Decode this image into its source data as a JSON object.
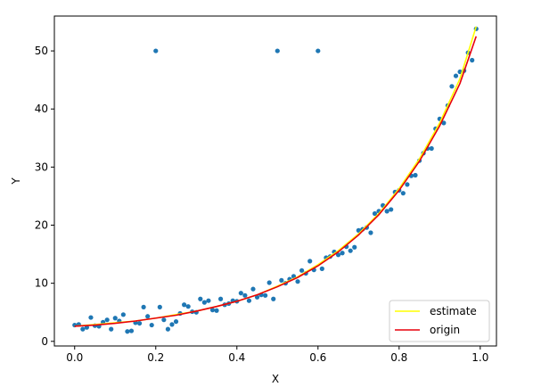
{
  "chart_data": {
    "type": "scatter",
    "title": "",
    "xlabel": "X",
    "ylabel": "Y",
    "xlim": [
      -0.05,
      1.04
    ],
    "ylim": [
      -0.8,
      56.0
    ],
    "xticks": [
      0.0,
      0.2,
      0.4,
      0.6,
      0.8,
      1.0
    ],
    "xtick_labels": [
      "0.0",
      "0.2",
      "0.4",
      "0.6",
      "0.8",
      "1.0"
    ],
    "yticks": [
      0,
      10,
      20,
      30,
      40,
      50
    ],
    "ytick_labels": [
      "0",
      "10",
      "20",
      "30",
      "40",
      "50"
    ],
    "grid": false,
    "legend_position": "lower-right",
    "colors": {
      "points": "#1f77b4",
      "estimate": "#ffff00",
      "origin": "#e8000b"
    },
    "series": [
      {
        "type": "scatter",
        "x": [
          0.0,
          0.01,
          0.02,
          0.03,
          0.04,
          0.05,
          0.06,
          0.07,
          0.08,
          0.09,
          0.1,
          0.11,
          0.12,
          0.13,
          0.14,
          0.15,
          0.16,
          0.17,
          0.18,
          0.19,
          0.2,
          0.21,
          0.22,
          0.23,
          0.24,
          0.25,
          0.26,
          0.27,
          0.28,
          0.29,
          0.3,
          0.31,
          0.32,
          0.33,
          0.34,
          0.35,
          0.36,
          0.37,
          0.38,
          0.39,
          0.4,
          0.41,
          0.42,
          0.43,
          0.44,
          0.45,
          0.46,
          0.47,
          0.48,
          0.49,
          0.5,
          0.51,
          0.52,
          0.53,
          0.54,
          0.55,
          0.56,
          0.57,
          0.58,
          0.59,
          0.6,
          0.61,
          0.62,
          0.63,
          0.64,
          0.65,
          0.66,
          0.67,
          0.68,
          0.69,
          0.7,
          0.71,
          0.72,
          0.73,
          0.74,
          0.75,
          0.76,
          0.77,
          0.78,
          0.79,
          0.8,
          0.81,
          0.82,
          0.83,
          0.84,
          0.85,
          0.86,
          0.87,
          0.88,
          0.89,
          0.9,
          0.91,
          0.92,
          0.93,
          0.94,
          0.95,
          0.96,
          0.97,
          0.98,
          0.99
        ],
        "y": [
          2.8,
          2.9,
          2.1,
          2.4,
          4.1,
          2.7,
          2.6,
          3.3,
          3.7,
          2.1,
          4.0,
          3.5,
          4.6,
          1.7,
          1.8,
          3.2,
          3.1,
          5.9,
          4.3,
          2.8,
          50.0,
          5.9,
          3.7,
          2.1,
          2.9,
          3.4,
          4.8,
          6.3,
          6.0,
          5.1,
          5.0,
          7.3,
          6.7,
          7.0,
          5.4,
          5.3,
          7.3,
          6.3,
          6.5,
          7.0,
          6.9,
          8.3,
          7.9,
          7.0,
          9.0,
          7.6,
          8.0,
          7.9,
          10.1,
          7.3,
          50.0,
          10.5,
          10.0,
          10.7,
          11.2,
          10.3,
          12.2,
          11.7,
          13.8,
          12.3,
          50.0,
          12.5,
          14.4,
          14.6,
          15.4,
          14.9,
          15.2,
          16.3,
          15.6,
          16.2,
          19.1,
          19.3,
          19.6,
          18.7,
          22.0,
          22.4,
          23.4,
          22.4,
          22.7,
          25.7,
          26.0,
          25.5,
          27.0,
          28.5,
          28.6,
          31.1,
          32.4,
          33.2,
          33.2,
          36.6,
          38.3,
          37.6,
          40.6,
          43.9,
          45.7,
          46.4,
          46.6,
          49.7,
          48.4,
          53.8
        ]
      },
      {
        "type": "line",
        "name": "estimate",
        "x": [
          0.0,
          0.05,
          0.1,
          0.15,
          0.2,
          0.25,
          0.3,
          0.35,
          0.4,
          0.45,
          0.5,
          0.55,
          0.6,
          0.65,
          0.7,
          0.75,
          0.8,
          0.85,
          0.9,
          0.95,
          0.99
        ],
        "y": [
          2.6,
          2.9,
          3.2,
          3.5,
          4.0,
          4.6,
          5.2,
          6.0,
          6.9,
          8.0,
          9.5,
          11.1,
          13.2,
          15.6,
          18.5,
          22.0,
          26.3,
          31.4,
          37.6,
          45.2,
          54.2
        ]
      },
      {
        "type": "line",
        "name": "origin",
        "x": [
          0.0,
          0.05,
          0.1,
          0.15,
          0.2,
          0.25,
          0.3,
          0.35,
          0.4,
          0.45,
          0.5,
          0.55,
          0.6,
          0.65,
          0.7,
          0.75,
          0.8,
          0.85,
          0.9,
          0.95,
          0.99
        ],
        "y": [
          2.6,
          2.8,
          3.1,
          3.5,
          4.0,
          4.5,
          5.2,
          6.0,
          6.9,
          8.0,
          9.4,
          11.0,
          13.0,
          15.4,
          18.3,
          21.8,
          26.0,
          31.0,
          37.1,
          44.4,
          52.5
        ]
      }
    ],
    "legend": [
      {
        "label": "estimate",
        "color": "#ffff00"
      },
      {
        "label": "origin",
        "color": "#e8000b"
      }
    ]
  }
}
